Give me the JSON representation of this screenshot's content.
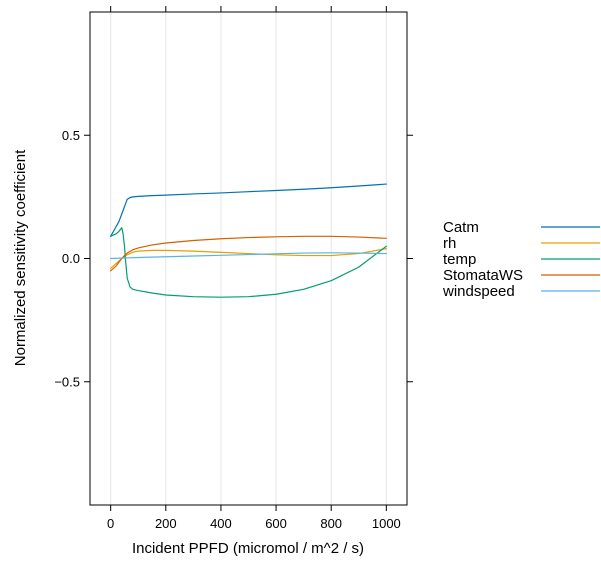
{
  "chart_data": {
    "type": "line",
    "xlabel": "Incident PPFD (micromol / m^2 / s)",
    "ylabel": "Normalized sensitivity coefficient",
    "xlim": [
      -75,
      1075
    ],
    "ylim": [
      -1.0,
      1.0
    ],
    "x_ticks": [
      0,
      200,
      400,
      600,
      800,
      1000
    ],
    "x_tick_labels": [
      "0",
      "200",
      "400",
      "600",
      "800",
      "1000"
    ],
    "y_ticks": [
      -0.5,
      0.0,
      0.5
    ],
    "y_tick_labels": [
      "−0.5",
      "0.0",
      "0.5"
    ],
    "grid": "vertical",
    "legend_position": "right",
    "series": [
      {
        "name": "Catm",
        "color": "#0072B2",
        "x": [
          0,
          10,
          20,
          30,
          40,
          50,
          60,
          70,
          80,
          100,
          150,
          200,
          300,
          400,
          500,
          600,
          700,
          800,
          900,
          1000
        ],
        "y": [
          0.09,
          0.11,
          0.13,
          0.15,
          0.18,
          0.21,
          0.24,
          0.247,
          0.25,
          0.252,
          0.255,
          0.257,
          0.262,
          0.266,
          0.271,
          0.276,
          0.281,
          0.287,
          0.294,
          0.302
        ]
      },
      {
        "name": "rh",
        "color": "#E69F00",
        "x": [
          0,
          20,
          40,
          60,
          80,
          100,
          150,
          200,
          300,
          400,
          500,
          600,
          700,
          800,
          900,
          1000
        ],
        "y": [
          -0.04,
          -0.02,
          0.0,
          0.015,
          0.025,
          0.03,
          0.033,
          0.033,
          0.03,
          0.025,
          0.02,
          0.015,
          0.012,
          0.012,
          0.02,
          0.04
        ]
      },
      {
        "name": "temp",
        "color": "#009E73",
        "x": [
          0,
          10,
          20,
          30,
          40,
          45,
          50,
          55,
          60,
          70,
          80,
          100,
          150,
          200,
          300,
          400,
          500,
          600,
          700,
          800,
          900,
          1000
        ],
        "y": [
          0.09,
          0.095,
          0.1,
          0.11,
          0.125,
          0.1,
          0.05,
          -0.02,
          -0.08,
          -0.115,
          -0.125,
          -0.13,
          -0.14,
          -0.148,
          -0.155,
          -0.157,
          -0.155,
          -0.145,
          -0.125,
          -0.09,
          -0.035,
          0.05
        ]
      },
      {
        "name": "StomataWS",
        "color": "#D55E00",
        "x": [
          0,
          10,
          20,
          30,
          40,
          50,
          60,
          80,
          100,
          150,
          200,
          300,
          400,
          500,
          600,
          700,
          800,
          900,
          1000
        ],
        "y": [
          -0.05,
          -0.04,
          -0.03,
          -0.015,
          0.0,
          0.012,
          0.022,
          0.035,
          0.043,
          0.055,
          0.063,
          0.073,
          0.08,
          0.085,
          0.088,
          0.09,
          0.09,
          0.087,
          0.082
        ]
      },
      {
        "name": "windspeed",
        "color": "#56B4E9",
        "x": [
          0,
          100,
          200,
          300,
          400,
          500,
          600,
          700,
          800,
          900,
          1000
        ],
        "y": [
          0.0,
          0.004,
          0.007,
          0.01,
          0.013,
          0.016,
          0.019,
          0.022,
          0.023,
          0.022,
          0.02
        ]
      }
    ]
  }
}
